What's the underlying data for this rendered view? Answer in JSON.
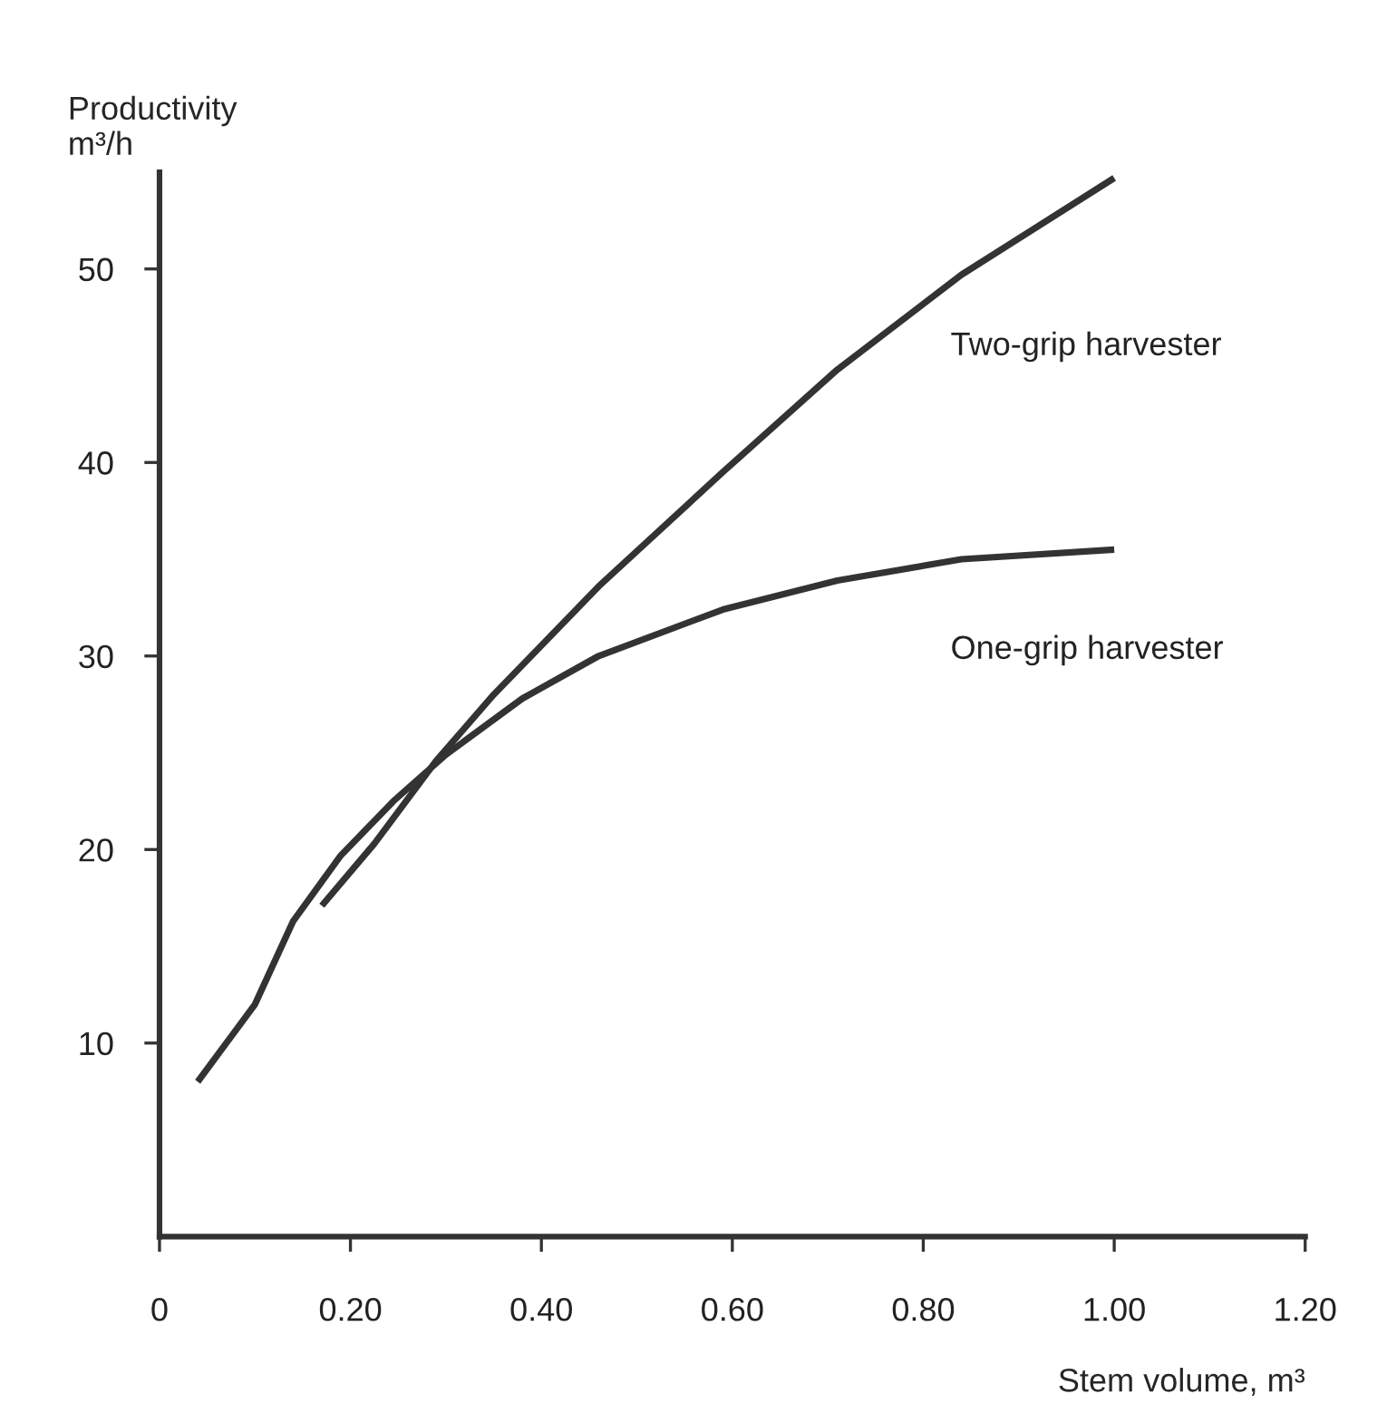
{
  "chart_data": {
    "type": "line",
    "ylabel": "Productivity\nm³/h",
    "xlabel": "Stem volume, m³",
    "series": [
      {
        "name": "Two-grip harvester",
        "color": "#333333",
        "x": [
          0.17,
          0.225,
          0.29,
          0.35,
          0.46,
          0.59,
          0.71,
          0.84,
          1.0
        ],
        "values": [
          17.1,
          20.3,
          24.6,
          28.0,
          33.6,
          39.5,
          44.8,
          49.7,
          54.7
        ]
      },
      {
        "name": "One-grip harvester",
        "color": "#333333",
        "x": [
          0.04,
          0.1,
          0.14,
          0.19,
          0.245,
          0.3,
          0.38,
          0.46,
          0.59,
          0.71,
          0.84,
          1.0
        ],
        "values": [
          8.0,
          12.0,
          16.3,
          19.7,
          22.5,
          24.9,
          27.8,
          30.0,
          32.4,
          33.9,
          35.0,
          35.5
        ]
      }
    ],
    "xlim": [
      0,
      1.2
    ],
    "ylim": [
      0,
      55
    ],
    "xticks": [
      0,
      {
        "value": 0.2,
        "label": "0.20"
      },
      {
        "value": 0.4,
        "label": "0.40"
      },
      {
        "value": 0.6,
        "label": "0.60"
      },
      {
        "value": 0.8,
        "label": "0.80"
      },
      {
        "value": 1.0,
        "label": "1.00"
      },
      {
        "value": 1.2,
        "label": "1.20"
      }
    ],
    "yticks": [
      10,
      20,
      30,
      40,
      50
    ],
    "grid": false,
    "legend": false,
    "marker": "none",
    "line_style": "solid"
  }
}
